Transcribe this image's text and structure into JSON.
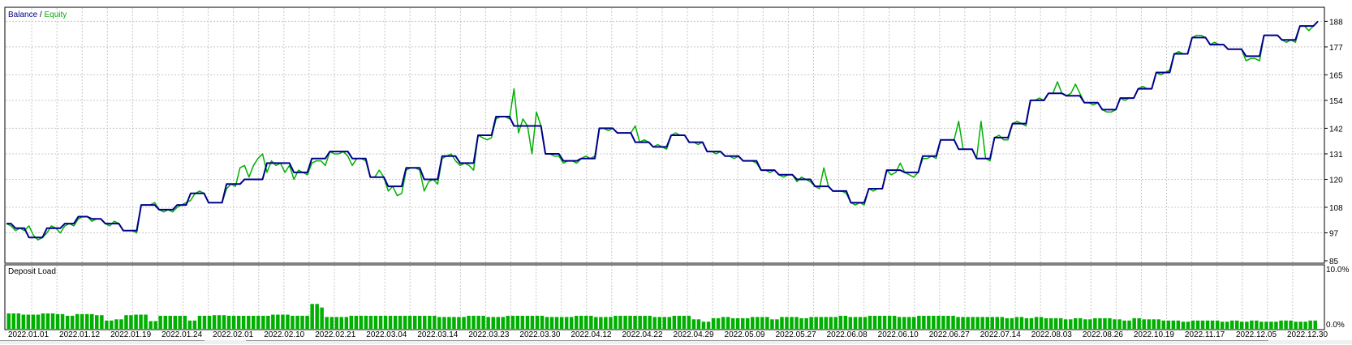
{
  "chart_data": [
    {
      "type": "line",
      "legend": [
        "Balance",
        "Equity"
      ],
      "legend_separator": " / ",
      "y_ticks": [
        "188",
        "177",
        "165",
        "154",
        "142",
        "131",
        "120",
        "108",
        "97",
        "85"
      ],
      "ylim": [
        85,
        193
      ],
      "grid": true,
      "series": [
        {
          "name": "Balance",
          "color": "#00008b",
          "values": [
            101,
            101,
            99,
            99,
            99,
            95,
            95,
            95,
            95,
            99,
            99,
            99,
            99,
            101,
            101,
            101,
            104,
            104,
            104,
            103,
            103,
            103,
            101,
            101,
            101,
            101,
            98,
            98,
            98,
            98,
            109,
            109,
            109,
            109,
            107,
            107,
            107,
            107,
            109,
            109,
            109,
            114,
            114,
            114,
            114,
            110,
            110,
            110,
            110,
            118,
            118,
            118,
            118,
            120,
            120,
            120,
            120,
            120,
            127,
            127,
            127,
            127,
            127,
            127,
            123,
            123,
            123,
            123,
            129,
            129,
            129,
            129,
            132,
            132,
            132,
            132,
            132,
            129,
            129,
            129,
            129,
            121,
            121,
            121,
            121,
            117,
            117,
            117,
            117,
            125,
            125,
            125,
            125,
            120,
            120,
            120,
            120,
            130,
            130,
            130,
            130,
            127,
            127,
            127,
            127,
            139,
            139,
            139,
            139,
            147,
            147,
            147,
            147,
            143,
            143,
            143,
            143,
            143,
            143,
            143,
            131,
            131,
            131,
            131,
            128,
            128,
            128,
            128,
            129,
            129,
            129,
            129,
            142,
            142,
            142,
            142,
            140,
            140,
            140,
            140,
            136,
            136,
            136,
            136,
            134,
            134,
            134,
            134,
            139,
            139,
            139,
            139,
            136,
            136,
            136,
            136,
            132,
            132,
            132,
            132,
            130,
            130,
            130,
            130,
            128,
            128,
            128,
            128,
            124,
            124,
            124,
            124,
            122,
            122,
            122,
            122,
            120,
            120,
            120,
            120,
            117,
            117,
            117,
            117,
            115,
            115,
            115,
            115,
            110,
            110,
            110,
            110,
            116,
            116,
            116,
            116,
            124,
            124,
            124,
            124,
            123,
            123,
            123,
            123,
            130,
            130,
            130,
            130,
            137,
            137,
            137,
            137,
            133,
            133,
            133,
            133,
            129,
            129,
            129,
            129,
            138,
            138,
            138,
            138,
            144,
            144,
            144,
            144,
            154,
            154,
            154,
            154,
            157,
            157,
            157,
            157,
            156,
            156,
            156,
            156,
            153,
            153,
            153,
            153,
            150,
            150,
            150,
            150,
            155,
            155,
            155,
            155,
            159,
            159,
            159,
            159,
            166,
            166,
            166,
            166,
            174,
            174,
            174,
            174,
            181,
            181,
            181,
            181,
            178,
            178,
            178,
            178,
            176,
            176,
            176,
            176,
            173,
            173,
            173,
            173,
            182,
            182,
            182,
            182,
            180,
            180,
            180,
            180,
            186,
            186,
            186,
            186,
            188
          ]
        },
        {
          "name": "Equity",
          "color": "#00b000",
          "values": [
            101,
            100,
            98,
            99,
            98,
            100,
            96,
            94,
            95,
            97,
            100,
            99,
            97,
            100,
            101,
            100,
            103,
            104,
            104,
            102,
            103,
            103,
            101,
            100,
            102,
            101,
            98,
            98,
            98,
            97,
            109,
            109,
            109,
            110,
            107,
            106,
            107,
            106,
            108,
            109,
            110,
            111,
            114,
            115,
            114,
            110,
            110,
            110,
            110,
            116,
            118,
            117,
            125,
            126,
            121,
            126,
            129,
            131,
            123,
            128,
            126,
            127,
            123,
            126,
            120,
            124,
            123,
            122,
            127,
            128,
            128,
            126,
            132,
            131,
            131,
            132,
            130,
            126,
            129,
            129,
            128,
            121,
            121,
            124,
            121,
            115,
            117,
            113,
            114,
            124,
            125,
            125,
            124,
            115,
            119,
            120,
            118,
            129,
            130,
            131,
            128,
            126,
            127,
            126,
            124,
            139,
            138,
            137,
            138,
            146,
            147,
            147,
            146,
            159,
            140,
            146,
            143,
            131,
            149,
            143,
            131,
            131,
            130,
            130,
            127,
            128,
            128,
            127,
            129,
            130,
            129,
            130,
            142,
            142,
            141,
            142,
            140,
            140,
            140,
            140,
            143,
            136,
            137,
            136,
            134,
            135,
            134,
            133,
            139,
            140,
            139,
            139,
            136,
            136,
            135,
            136,
            132,
            132,
            131,
            132,
            130,
            130,
            129,
            130,
            128,
            128,
            128,
            127,
            124,
            124,
            123,
            124,
            122,
            121,
            122,
            122,
            119,
            121,
            120,
            119,
            117,
            116,
            125,
            117,
            115,
            115,
            115,
            114,
            110,
            109,
            110,
            109,
            116,
            115,
            116,
            116,
            124,
            122,
            123,
            127,
            123,
            122,
            121,
            123,
            129,
            129,
            130,
            129,
            137,
            137,
            137,
            137,
            145,
            133,
            133,
            133,
            129,
            145,
            129,
            128,
            138,
            139,
            137,
            137,
            144,
            145,
            144,
            143,
            154,
            154,
            155,
            154,
            157,
            157,
            162,
            157,
            156,
            157,
            161,
            157,
            153,
            153,
            152,
            153,
            150,
            149,
            149,
            150,
            155,
            154,
            155,
            155,
            159,
            160,
            159,
            159,
            166,
            165,
            166,
            167,
            174,
            175,
            174,
            174,
            181,
            182,
            182,
            181,
            178,
            179,
            178,
            178,
            176,
            176,
            176,
            176,
            171,
            172,
            172,
            171,
            182,
            182,
            182,
            182,
            180,
            179,
            180,
            179,
            186,
            186,
            184,
            186,
            188
          ]
        }
      ]
    },
    {
      "type": "bar",
      "title": "Deposit Load",
      "y_ticks": [
        "10.0%",
        "0.0%"
      ],
      "ylim": [
        0,
        10
      ],
      "color": "#00b000",
      "values": [
        2.6,
        2.6,
        2.6,
        2.4,
        2.4,
        2.4,
        2.4,
        2.6,
        2.6,
        2.6,
        2.5,
        2.5,
        2.2,
        2.2,
        2.5,
        2.5,
        2.5,
        2.5,
        2.3,
        2.3,
        1.4,
        1.4,
        1.6,
        1.6,
        2.3,
        2.3,
        2.4,
        2.4,
        2.4,
        1.3,
        1.3,
        2.2,
        2.2,
        2.2,
        2.2,
        2.2,
        2.2,
        1.4,
        1.4,
        2.2,
        2.2,
        2.2,
        2.3,
        2.3,
        2.3,
        2.2,
        2.2,
        2.2,
        2.2,
        2.2,
        2.2,
        2.2,
        2.2,
        2.2,
        2.4,
        2.4,
        2.4,
        2.4,
        2.2,
        2.2,
        2.2,
        2.2,
        4.2,
        4.2,
        3.6,
        2.0,
        2.0,
        2.0,
        2.0,
        2.0,
        2.2,
        2.2,
        2.2,
        2.2,
        2.2,
        2.2,
        2.2,
        2.2,
        2.2,
        2.2,
        2.2,
        2.2,
        2.2,
        2.2,
        2.2,
        2.2,
        2.2,
        2.2,
        2.0,
        2.0,
        2.0,
        2.0,
        2.0,
        2.0,
        2.2,
        2.2,
        2.2,
        2.2,
        2.0,
        2.0,
        2.0,
        2.0,
        2.2,
        2.2,
        2.2,
        2.2,
        2.2,
        2.2,
        2.2,
        2.2,
        2.0,
        2.0,
        2.0,
        2.0,
        2.0,
        2.0,
        2.2,
        2.2,
        2.2,
        2.2,
        2.0,
        2.0,
        2.0,
        2.0,
        2.2,
        2.2,
        2.2,
        2.2,
        2.2,
        2.2,
        2.2,
        2.2,
        2.0,
        2.0,
        2.0,
        2.0,
        2.2,
        2.2,
        2.2,
        2.2,
        1.6,
        1.6,
        1.2,
        1.2,
        1.8,
        1.8,
        2.0,
        2.0,
        1.8,
        1.8,
        1.8,
        1.8,
        2.0,
        2.0,
        2.0,
        2.0,
        1.6,
        1.6,
        2.0,
        2.0,
        2.0,
        2.0,
        1.8,
        1.8,
        2.0,
        2.0,
        2.0,
        2.0,
        2.0,
        2.0,
        2.2,
        2.2,
        2.0,
        2.0,
        2.0,
        2.0,
        2.2,
        2.2,
        2.2,
        2.2,
        2.2,
        2.2,
        2.0,
        2.0,
        2.0,
        2.0,
        2.2,
        2.2,
        2.2,
        2.2,
        2.2,
        2.2,
        2.2,
        2.2,
        2.0,
        2.0,
        2.0,
        2.0,
        2.0,
        2.0,
        2.0,
        2.0,
        2.0,
        2.0,
        1.8,
        1.8,
        2.0,
        2.0,
        1.8,
        1.8,
        2.0,
        2.0,
        1.8,
        1.8,
        1.8,
        1.8,
        1.6,
        1.6,
        1.8,
        1.8,
        1.6,
        1.6,
        1.8,
        1.8,
        1.8,
        1.8,
        1.6,
        1.6,
        1.4,
        1.4,
        1.8,
        1.8,
        1.6,
        1.6,
        1.6,
        1.6,
        1.4,
        1.4,
        1.4,
        1.4,
        1.2,
        1.2,
        1.4,
        1.4,
        1.4,
        1.4,
        1.4,
        1.4,
        1.2,
        1.2,
        1.4,
        1.4,
        1.2,
        1.2,
        1.4,
        1.4,
        1.2,
        1.2,
        1.2,
        1.2,
        1.4,
        1.4,
        1.4,
        1.2,
        1.2,
        1.2,
        1.4,
        1.4
      ]
    }
  ],
  "x_axis": {
    "tick_labels": [
      "2022.01.01",
      "2022.01.12",
      "2022.01.19",
      "2022.01.24",
      "2022.02.01",
      "2022.02.10",
      "2022.02.21",
      "2022.03.04",
      "2022.03.14",
      "2022.03.23",
      "2022.03.30",
      "2022.04.12",
      "2022.04.22",
      "2022.04.29",
      "2022.05.09",
      "2022.05.27",
      "2022.06.08",
      "2022.06.10",
      "2022.06.27",
      "2022.07.14",
      "2022.08.03",
      "2022.08.26",
      "2022.10.19",
      "2022.11.17",
      "2022.12.05",
      "2022.12.30"
    ]
  },
  "colors": {
    "balance": "#00008b",
    "equity": "#00b000",
    "grid": "#c8c8c8",
    "frame": "#000000"
  }
}
